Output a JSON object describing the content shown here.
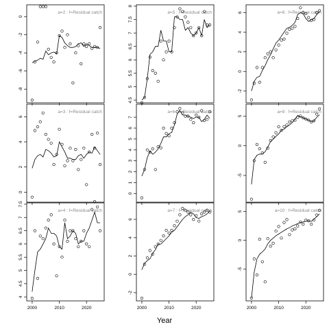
{
  "figure": {
    "xlabel": "Year"
  },
  "chart_data": [
    {
      "type": "scatter",
      "title": "a=2 : f=Residual catch",
      "xlim": [
        1998,
        2026.5
      ],
      "ylim": [
        -9.5,
        1.3
      ],
      "xticks": [
        2000,
        2010,
        2020
      ],
      "yticks": [
        -8,
        -6,
        -4,
        -2,
        0
      ],
      "x": [
        2000,
        2001,
        2002,
        2003,
        2004,
        2005,
        2006,
        2007,
        2008,
        2009,
        2010,
        2011,
        2012,
        2013,
        2014,
        2015,
        2016,
        2017,
        2018,
        2019,
        2020,
        2021,
        2022,
        2023,
        2024,
        2025
      ],
      "points": [
        -9.2,
        -5.0,
        -2.8,
        1.1,
        1.1,
        1.1,
        -3.6,
        -4.5,
        -5.0,
        -4.0,
        -2.1,
        -1.6,
        -3.4,
        -2.0,
        -3.0,
        -7.3,
        -4.0,
        -3.2,
        -5.2,
        -3.0,
        -3.3,
        -3.0,
        -3.5,
        -3.3,
        -3.4,
        -1.2
      ],
      "fit": [
        -5.1,
        -4.9,
        -4.8,
        -4.6,
        -4.7,
        -3.8,
        -4.2,
        -4.0,
        -3.9,
        -4.1,
        -2.1,
        -2.3,
        -2.9,
        -3.2,
        -3.4,
        -3.4,
        -3.3,
        -3.0,
        -2.9,
        -3.3,
        -3.0,
        -3.2,
        -3.4,
        -3.4,
        -3.4,
        -3.5
      ]
    },
    {
      "type": "scatter",
      "title": "a=5 : f=Residual catch",
      "xlim": [
        1998,
        2026.5
      ],
      "ylim": [
        4.4,
        8.05
      ],
      "xticks": [
        2000,
        2010,
        2020
      ],
      "yticks": [
        4.5,
        5.0,
        5.5,
        6.0,
        6.5,
        7.0,
        7.5,
        8.0
      ],
      "x": [
        2000,
        2001,
        2002,
        2003,
        2004,
        2005,
        2006,
        2007,
        2008,
        2009,
        2010,
        2011,
        2012,
        2013,
        2014,
        2015,
        2016,
        2017,
        2018,
        2019,
        2020,
        2021,
        2022,
        2023,
        2024,
        2025
      ],
      "points": [
        4.4,
        4.6,
        5.3,
        6.1,
        5.6,
        5.5,
        5.2,
        6.7,
        6.0,
        6.3,
        6.7,
        6.3,
        7.2,
        7.6,
        7.9,
        7.8,
        7.6,
        7.4,
        7.2,
        6.9,
        7.0,
        7.2,
        6.9,
        7.8,
        7.3,
        7.3
      ],
      "fit": [
        4.5,
        4.6,
        5.3,
        6.2,
        6.3,
        6.5,
        6.5,
        7.1,
        6.7,
        6.7,
        6.3,
        6.3,
        7.6,
        7.6,
        7.5,
        7.5,
        7.1,
        7.2,
        7.0,
        6.9,
        7.0,
        7.2,
        6.9,
        7.5,
        7.2,
        7.3
      ]
    },
    {
      "type": "scatter",
      "title": "a=8 : f=Residual catch",
      "xlim": [
        1998,
        2026.5
      ],
      "ylim": [
        -3.2,
        6.8
      ],
      "xticks": [
        2000,
        2010,
        2020
      ],
      "yticks": [
        -2,
        0,
        2,
        4,
        6
      ],
      "x": [
        2000,
        2001,
        2002,
        2003,
        2004,
        2005,
        2006,
        2007,
        2008,
        2009,
        2010,
        2011,
        2012,
        2013,
        2014,
        2015,
        2016,
        2017,
        2018,
        2019,
        2020,
        2021,
        2022,
        2023,
        2024,
        2025
      ],
      "points": [
        -2.9,
        -1.2,
        0.4,
        -1.1,
        0.4,
        1.4,
        1.8,
        2.0,
        1.4,
        2.2,
        2.7,
        3.2,
        3.3,
        3.9,
        4.3,
        4.4,
        4.6,
        5.4,
        6.5,
        6.0,
        5.9,
        5.5,
        5.2,
        5.3,
        6.0,
        6.2
      ],
      "fit": [
        -2.0,
        -1.0,
        -0.6,
        -0.5,
        0.1,
        0.6,
        1.2,
        1.7,
        2.3,
        2.9,
        3.2,
        3.6,
        4.0,
        4.4,
        4.5,
        4.7,
        5.0,
        5.8,
        6.0,
        5.9,
        5.4,
        5.1,
        5.3,
        5.4,
        5.8,
        6.1
      ]
    },
    {
      "type": "scatter",
      "title": "a=3 : f=Residual catch",
      "xlim": [
        1998,
        2026.5
      ],
      "ylim": [
        -0.8,
        7.0
      ],
      "xticks": [
        2000,
        2010,
        2020
      ],
      "yticks": [
        0,
        2,
        4,
        6
      ],
      "x": [
        2000,
        2001,
        2002,
        2003,
        2004,
        2005,
        2006,
        2007,
        2008,
        2009,
        2010,
        2011,
        2012,
        2013,
        2014,
        2015,
        2016,
        2017,
        2018,
        2019,
        2020,
        2021,
        2022,
        2023,
        2024,
        2025
      ],
      "points": [
        -0.4,
        4.9,
        5.2,
        5.6,
        6.3,
        4.6,
        4.2,
        3.9,
        2.2,
        3.0,
        5.0,
        3.8,
        2.1,
        2.5,
        3.5,
        2.5,
        3.4,
        1.8,
        2.6,
        3.5,
        0.6,
        3.2,
        4.6,
        3.5,
        4.7,
        2.2
      ],
      "fit": [
        1.9,
        2.6,
        2.9,
        3.0,
        2.8,
        3.4,
        3.3,
        3.1,
        2.8,
        2.9,
        4.0,
        3.6,
        3.2,
        2.7,
        2.7,
        2.6,
        2.6,
        2.9,
        3.0,
        2.7,
        3.0,
        3.2,
        3.1,
        3.6,
        3.3,
        3.0
      ]
    },
    {
      "type": "scatter",
      "title": "a=6 : f=Residual catch",
      "xlim": [
        1998,
        2026.5
      ],
      "ylim": [
        -0.8,
        8.2
      ],
      "xticks": [
        2000,
        2010,
        2020
      ],
      "yticks": [
        0,
        1,
        2,
        3,
        4,
        5,
        6,
        7
      ],
      "x": [
        2000,
        2001,
        2002,
        2003,
        2004,
        2005,
        2006,
        2007,
        2008,
        2009,
        2010,
        2011,
        2012,
        2013,
        2014,
        2015,
        2016,
        2017,
        2018,
        2019,
        2020,
        2021,
        2022,
        2023,
        2024,
        2025
      ],
      "points": [
        -0.4,
        2.2,
        4.0,
        3.8,
        4.1,
        2.2,
        4.3,
        4.2,
        6.0,
        5.5,
        5.3,
        6.0,
        6.5,
        7.5,
        7.8,
        7.4,
        7.1,
        7.1,
        6.8,
        6.5,
        7.2,
        7.0,
        7.6,
        6.7,
        6.8,
        7.5
      ],
      "fit": [
        1.6,
        2.2,
        3.3,
        3.9,
        3.6,
        3.8,
        4.1,
        4.6,
        5.2,
        5.2,
        5.5,
        5.6,
        6.3,
        7.3,
        7.6,
        7.2,
        7.2,
        7.1,
        7.0,
        6.9,
        7.0,
        7.0,
        6.6,
        6.8,
        7.2,
        6.9
      ]
    },
    {
      "type": "scatter",
      "title": "a=9 : f=Residual catch",
      "xlim": [
        1998,
        2026.5
      ],
      "ylim": [
        -9.5,
        7.0
      ],
      "xticks": [
        2000,
        2010,
        2020
      ],
      "yticks": [
        -5,
        0,
        5
      ],
      "x": [
        2000,
        2001,
        2002,
        2003,
        2004,
        2005,
        2006,
        2007,
        2008,
        2009,
        2010,
        2011,
        2012,
        2013,
        2014,
        2015,
        2016,
        2017,
        2018,
        2019,
        2020,
        2021,
        2022,
        2023,
        2024,
        2025
      ],
      "points": [
        -9.0,
        -2.5,
        0.2,
        -0.5,
        -1.2,
        -2.8,
        -0.4,
        0.9,
        1.5,
        2.2,
        3.2,
        2.6,
        3.2,
        3.5,
        4.0,
        4.2,
        4.3,
        4.8,
        5.0,
        4.7,
        4.5,
        4.3,
        4.0,
        4.2,
        5.3,
        6.2
      ],
      "fit": [
        -6.5,
        -2.3,
        -1.6,
        -1.4,
        -1.4,
        -1.0,
        -0.2,
        0.7,
        1.1,
        1.6,
        2.0,
        2.6,
        2.8,
        3.2,
        3.5,
        3.9,
        4.5,
        5.1,
        4.9,
        4.7,
        4.5,
        4.3,
        4.1,
        4.2,
        4.8,
        5.2
      ]
    },
    {
      "type": "scatter",
      "title": "a=4 : f=Residual catch",
      "xlim": [
        1998,
        2026.5
      ],
      "ylim": [
        3.85,
        7.55
      ],
      "xticks": [
        2000,
        2010,
        2020
      ],
      "yticks": [
        4.0,
        4.5,
        5.0,
        5.5,
        6.0,
        6.5,
        7.0,
        7.5
      ],
      "x": [
        2000,
        2001,
        2002,
        2003,
        2004,
        2005,
        2006,
        2007,
        2008,
        2009,
        2010,
        2011,
        2012,
        2013,
        2014,
        2015,
        2016,
        2017,
        2018,
        2019,
        2020,
        2021,
        2022,
        2023,
        2024,
        2025
      ],
      "points": [
        3.95,
        6.5,
        4.7,
        6.3,
        6.2,
        6.6,
        6.9,
        7.1,
        6.0,
        4.8,
        5.9,
        5.5,
        6.9,
        6.1,
        6.5,
        6.5,
        6.2,
        5.9,
        6.1,
        6.5,
        6.0,
        5.9,
        7.3,
        7.6,
        7.4,
        6.5
      ],
      "fit": [
        4.2,
        5.0,
        5.7,
        5.8,
        6.0,
        6.2,
        6.6,
        6.4,
        6.4,
        6.3,
        5.9,
        5.8,
        6.8,
        6.2,
        6.3,
        6.5,
        6.4,
        6.0,
        6.1,
        6.1,
        6.4,
        6.6,
        6.9,
        7.2,
        6.8,
        6.8
      ]
    },
    {
      "type": "scatter",
      "title": "a=7 : f=Residual catch",
      "xlim": [
        1998,
        2026.5
      ],
      "ylim": [
        -2.9,
        7.8
      ],
      "xticks": [
        2000,
        2010,
        2020
      ],
      "yticks": [
        -2,
        0,
        2,
        4,
        6
      ],
      "x": [
        2000,
        2001,
        2002,
        2003,
        2004,
        2005,
        2006,
        2007,
        2008,
        2009,
        2010,
        2011,
        2012,
        2013,
        2014,
        2015,
        2016,
        2017,
        2018,
        2019,
        2020,
        2021,
        2022,
        2023,
        2024,
        2025
      ],
      "points": [
        -2.6,
        1.1,
        1.8,
        2.6,
        2.2,
        3.0,
        3.3,
        3.7,
        4.2,
        4.8,
        4.5,
        4.8,
        5.3,
        5.8,
        6.5,
        7.2,
        7.0,
        6.8,
        6.5,
        6.0,
        6.4,
        5.8,
        6.6,
        6.8,
        7.0,
        6.8
      ],
      "fit": [
        0.5,
        1.2,
        1.5,
        1.7,
        2.3,
        2.7,
        3.3,
        3.3,
        3.6,
        3.9,
        4.2,
        4.6,
        4.8,
        5.2,
        5.6,
        6.0,
        6.3,
        6.5,
        6.8,
        6.6,
        6.2,
        6.1,
        6.3,
        6.4,
        6.6,
        6.9
      ]
    },
    {
      "type": "scatter",
      "title": "a=10 : f=Residual catch",
      "xlim": [
        1998,
        2026.5
      ],
      "ylim": [
        -10.5,
        6.5
      ],
      "xticks": [
        2000,
        2010,
        2020
      ],
      "yticks": [
        -5,
        0,
        5
      ],
      "x": [
        2000,
        2001,
        2002,
        2003,
        2004,
        2005,
        2006,
        2007,
        2008,
        2009,
        2010,
        2011,
        2012,
        2013,
        2014,
        2015,
        2016,
        2017,
        2018,
        2019,
        2020,
        2021,
        2022,
        2023,
        2024,
        2025
      ],
      "points": [
        -10.0,
        -3.2,
        -6.0,
        0.2,
        -3.7,
        -7.2,
        0.3,
        -1.0,
        -0.5,
        1.6,
        2.4,
        0.4,
        3.1,
        3.6,
        1.0,
        1.8,
        2.0,
        2.5,
        3.2,
        2.8,
        3.5,
        3.4,
        2.8,
        3.5,
        4.4,
        5.2
      ],
      "fit": [
        -10.0,
        -5.5,
        -3.2,
        -2.4,
        -2.0,
        -1.5,
        -0.6,
        0.0,
        0.4,
        0.8,
        1.1,
        1.4,
        1.7,
        2.0,
        2.2,
        2.5,
        2.7,
        2.9,
        3.1,
        3.2,
        3.3,
        3.4,
        3.3,
        3.7,
        4.1,
        4.6
      ]
    }
  ]
}
